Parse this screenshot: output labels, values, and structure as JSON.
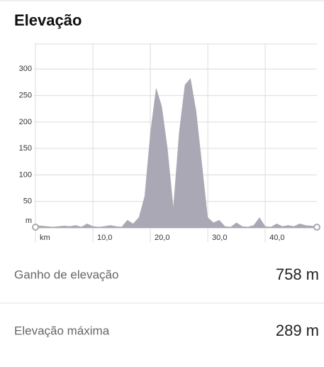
{
  "header": {
    "title": "Elevação"
  },
  "chart_data": {
    "type": "area",
    "color": "#a9a8b4",
    "grid": true,
    "x": [
      0,
      1,
      2,
      3,
      4,
      5,
      6,
      7,
      8,
      9,
      10,
      11,
      12,
      13,
      14,
      15,
      16,
      17,
      18,
      19,
      20,
      21,
      22,
      23,
      24,
      25,
      26,
      27,
      28,
      29,
      30,
      31,
      32,
      33,
      34,
      35,
      36,
      37,
      38,
      39,
      40,
      41,
      42,
      43,
      44,
      45,
      46,
      47,
      48,
      49
    ],
    "values": [
      5,
      4,
      3,
      2,
      3,
      4,
      3,
      5,
      2,
      8,
      3,
      2,
      3,
      5,
      3,
      2,
      15,
      8,
      20,
      60,
      180,
      265,
      230,
      150,
      40,
      180,
      270,
      283,
      220,
      120,
      20,
      10,
      15,
      3,
      2,
      10,
      3,
      2,
      5,
      20,
      3,
      2,
      8,
      3,
      5,
      3,
      8,
      5,
      4,
      3
    ],
    "xlim": [
      0,
      49
    ],
    "ylim": [
      0,
      350
    ],
    "xticks": [
      {
        "value": 0,
        "label": "km"
      },
      {
        "value": 10,
        "label": "10,0"
      },
      {
        "value": 20,
        "label": "20,0"
      },
      {
        "value": 30,
        "label": "30,0"
      },
      {
        "value": 40,
        "label": "40,0"
      }
    ],
    "yticks": [
      {
        "value": 0,
        "label": "m"
      },
      50,
      100,
      150,
      200,
      250,
      300
    ]
  },
  "stats": [
    {
      "label": "Ganho de elevação",
      "value": "758 m"
    },
    {
      "label": "Elevação máxima",
      "value": "289 m"
    }
  ]
}
